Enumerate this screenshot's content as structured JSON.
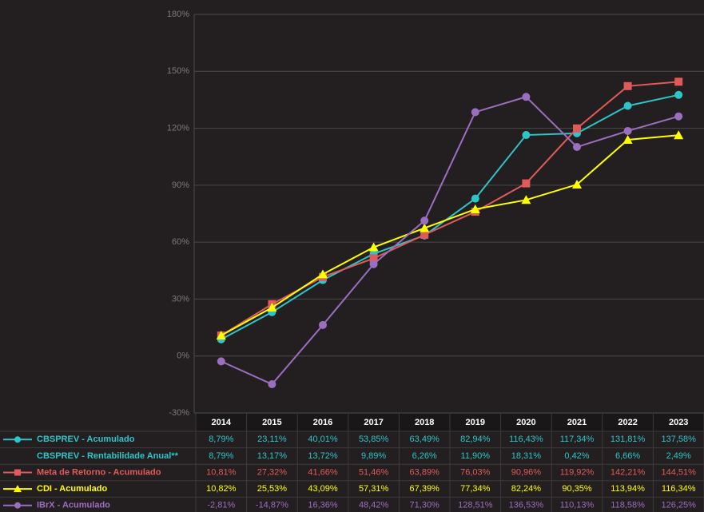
{
  "chart_data": {
    "type": "line",
    "categories": [
      "2014",
      "2015",
      "2016",
      "2017",
      "2018",
      "2019",
      "2020",
      "2021",
      "2022",
      "2023"
    ],
    "ylim": [
      -30,
      180
    ],
    "yticks": [
      {
        "value": -30,
        "label": "-30%"
      },
      {
        "value": 0,
        "label": "0%"
      },
      {
        "value": 30,
        "label": "30%"
      },
      {
        "value": 60,
        "label": "60%"
      },
      {
        "value": 90,
        "label": "90%"
      },
      {
        "value": 120,
        "label": "120%"
      },
      {
        "value": 150,
        "label": "150%"
      },
      {
        "value": 180,
        "label": "180%"
      }
    ],
    "grid": true,
    "series": [
      {
        "name": "CBSPREV - Acumulado",
        "color": "#2ec4c8",
        "marker": "circle",
        "values": [
          8.79,
          23.11,
          40.01,
          53.85,
          63.49,
          82.94,
          116.43,
          117.34,
          131.81,
          137.58
        ],
        "value_labels": [
          "8,79%",
          "23,11%",
          "40,01%",
          "53,85%",
          "63,49%",
          "82,94%",
          "116,43%",
          "117,34%",
          "131,81%",
          "137,58%"
        ]
      },
      {
        "name": "CBSPREV - Rentabilidade Anual**",
        "color": "#2ec4c8",
        "values": [
          8.79,
          13.17,
          13.72,
          9.89,
          6.26,
          11.9,
          18.31,
          0.42,
          6.66,
          2.49
        ],
        "value_labels": [
          "8,79%",
          "13,17%",
          "13,72%",
          "9,89%",
          "6,26%",
          "11,90%",
          "18,31%",
          "0,42%",
          "6,66%",
          "2,49%"
        ]
      },
      {
        "name": "Meta de Retorno - Acumulado",
        "color": "#e05a5a",
        "marker": "square",
        "values": [
          10.81,
          27.32,
          41.66,
          51.46,
          63.89,
          76.03,
          90.96,
          119.92,
          142.21,
          144.51
        ],
        "value_labels": [
          "10,81%",
          "27,32%",
          "41,66%",
          "51,46%",
          "63,89%",
          "76,03%",
          "90,96%",
          "119,92%",
          "142,21%",
          "144,51%"
        ]
      },
      {
        "name": "CDI - Acumulado",
        "color": "#ffff00",
        "marker": "triangle",
        "values": [
          10.82,
          25.53,
          43.09,
          57.31,
          67.39,
          77.34,
          82.24,
          90.35,
          113.94,
          116.34
        ],
        "value_labels": [
          "10,82%",
          "25,53%",
          "43,09%",
          "57,31%",
          "67,39%",
          "77,34%",
          "82,24%",
          "90,35%",
          "113,94%",
          "116,34%"
        ]
      },
      {
        "name": "IBrX - Acumulado",
        "color": "#9b6fbf",
        "marker": "circle",
        "values": [
          -2.81,
          -14.87,
          16.36,
          48.42,
          71.3,
          128.51,
          136.53,
          110.13,
          118.58,
          126.25
        ],
        "value_labels": [
          "-2,81%",
          "-14,87%",
          "16,36%",
          "48,42%",
          "71,30%",
          "128,51%",
          "136,53%",
          "110,13%",
          "118,58%",
          "126,25%"
        ]
      }
    ]
  }
}
